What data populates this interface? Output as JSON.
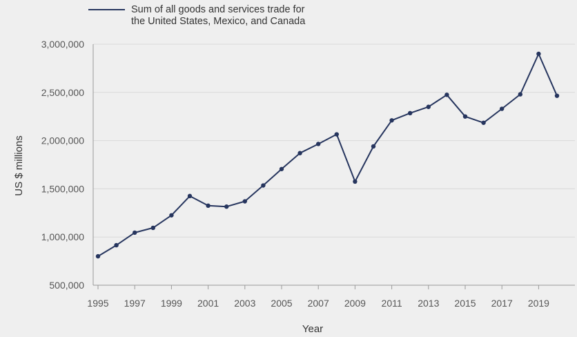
{
  "chart_data": {
    "type": "line",
    "title": "",
    "xlabel": "Year",
    "ylabel": "US $ millions",
    "x": [
      1995,
      1996,
      1997,
      1998,
      1999,
      2000,
      2001,
      2002,
      2003,
      2004,
      2005,
      2006,
      2007,
      2008,
      2009,
      2010,
      2011,
      2012,
      2013,
      2014,
      2015,
      2016,
      2017,
      2018,
      2019,
      2020
    ],
    "series": [
      {
        "name": "Sum of all goods and services trade for the United States, Mexico, and Canada",
        "legend_lines": [
          "Sum of all goods and services trade for",
          "the United States, Mexico, and Canada"
        ],
        "color": "#26355e",
        "values": [
          800000,
          915000,
          1045000,
          1095000,
          1225000,
          1425000,
          1325000,
          1315000,
          1370000,
          1535000,
          1705000,
          1870000,
          1965000,
          2065000,
          1575000,
          1940000,
          2210000,
          2285000,
          2350000,
          2475000,
          2250000,
          2185000,
          2330000,
          2480000,
          2900000,
          2465000
        ]
      }
    ],
    "ylim": [
      500000,
      3000000
    ],
    "yticks": [
      500000,
      1000000,
      1500000,
      2000000,
      2500000,
      3000000
    ],
    "ytick_labels": [
      "500,000",
      "1,000,000",
      "1,500,000",
      "2,000,000",
      "2,500,000",
      "3,000,000"
    ],
    "xticks": [
      1995,
      1997,
      1999,
      2001,
      2003,
      2005,
      2007,
      2009,
      2011,
      2013,
      2015,
      2017,
      2019
    ],
    "xtick_labels": [
      "1995",
      "1997",
      "1999",
      "2001",
      "2003",
      "2005",
      "2007",
      "2009",
      "2011",
      "2013",
      "2015",
      "2017",
      "2019"
    ],
    "grid": "horizontal",
    "legend_position": "top-left",
    "colors": {
      "background": "#efefef",
      "grid": "#d9d9d9",
      "axis": "#999999",
      "line": "#26355e"
    }
  }
}
